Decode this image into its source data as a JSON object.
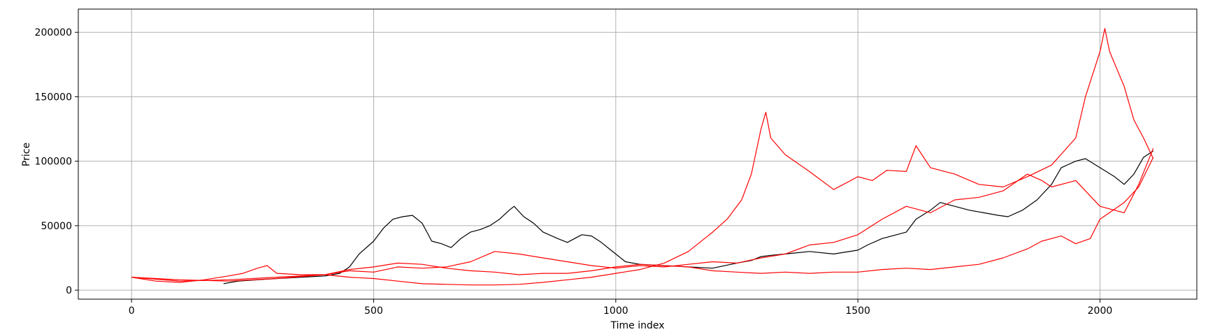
{
  "chart_data": {
    "type": "line",
    "title": "",
    "xlabel": "Time index",
    "ylabel": "Price",
    "xlim": [
      -110,
      2200
    ],
    "ylim": [
      -7000,
      218000
    ],
    "xticks": [
      0,
      500,
      1000,
      1500,
      2000
    ],
    "yticks": [
      0,
      50000,
      100000,
      150000,
      200000
    ],
    "grid": true,
    "series": [
      {
        "color": "#000000",
        "x": [
          190,
          220,
          260,
          300,
          350,
          400,
          430,
          450,
          470,
          500,
          520,
          540,
          560,
          580,
          600,
          620,
          640,
          660,
          680,
          700,
          720,
          740,
          760,
          780,
          790,
          810,
          830,
          850,
          880,
          900,
          930,
          950,
          970,
          990,
          1000,
          1020,
          1050,
          1100,
          1150,
          1200,
          1250,
          1280,
          1300,
          1320,
          1350,
          1400,
          1450,
          1500,
          1520,
          1550,
          1580,
          1600,
          1620,
          1650,
          1670,
          1700,
          1730,
          1760,
          1790,
          1810,
          1840,
          1870,
          1900,
          1920,
          1950,
          1970,
          2000,
          2030,
          2050,
          2070,
          2090,
          2110
        ],
        "y": [
          5000,
          7000,
          8000,
          9000,
          10000,
          11000,
          13000,
          18000,
          28000,
          38000,
          48000,
          55000,
          57000,
          58000,
          52000,
          38000,
          36000,
          33000,
          40000,
          45000,
          47000,
          50000,
          55000,
          62000,
          65000,
          57000,
          52000,
          45000,
          40000,
          37000,
          43000,
          42000,
          37000,
          31000,
          28000,
          22000,
          20000,
          19000,
          18000,
          17000,
          21000,
          23000,
          26000,
          27000,
          28000,
          30000,
          28000,
          31000,
          35000,
          40000,
          43000,
          45000,
          55000,
          62000,
          68000,
          65000,
          62000,
          60000,
          58000,
          57000,
          62000,
          70000,
          82000,
          95000,
          100000,
          102000,
          95000,
          88000,
          82000,
          90000,
          103000,
          108000
        ]
      },
      {
        "color": "#ff0000",
        "x": [
          0,
          50,
          100,
          150,
          200,
          230,
          260,
          280,
          300,
          350,
          400,
          450,
          500,
          550,
          600,
          650,
          700,
          750,
          800,
          850,
          900,
          950,
          1000,
          1050,
          1100,
          1150,
          1200,
          1230,
          1260,
          1280,
          1300,
          1310,
          1320,
          1350,
          1400,
          1450,
          1500,
          1530,
          1560,
          1600,
          1620,
          1650,
          1700,
          1750,
          1800,
          1850,
          1900,
          1950,
          1970,
          2000,
          2010,
          2020,
          2050,
          2070,
          2090,
          2110
        ],
        "y": [
          10000,
          7000,
          6000,
          8000,
          11000,
          13000,
          17000,
          19000,
          13000,
          12000,
          12000,
          10000,
          9000,
          7000,
          5000,
          4500,
          4000,
          4000,
          4500,
          6000,
          8000,
          10000,
          13000,
          16000,
          21000,
          30000,
          45000,
          55000,
          70000,
          90000,
          125000,
          138000,
          118000,
          105000,
          92000,
          78000,
          88000,
          85000,
          93000,
          92000,
          112000,
          95000,
          90000,
          82000,
          80000,
          88000,
          97000,
          118000,
          150000,
          185000,
          203000,
          185000,
          158000,
          132000,
          118000,
          102000
        ]
      },
      {
        "color": "#ff0000",
        "x": [
          0,
          100,
          200,
          300,
          400,
          450,
          500,
          550,
          600,
          650,
          700,
          750,
          800,
          850,
          900,
          950,
          1000,
          1050,
          1100,
          1150,
          1200,
          1250,
          1300,
          1350,
          1400,
          1450,
          1500,
          1550,
          1600,
          1650,
          1700,
          1750,
          1800,
          1850,
          1880,
          1900,
          1950,
          2000,
          2050,
          2080,
          2110
        ],
        "y": [
          10000,
          7000,
          8000,
          10000,
          12000,
          15000,
          14000,
          18000,
          17000,
          18000,
          22000,
          30000,
          28000,
          25000,
          22000,
          19000,
          17000,
          19000,
          18000,
          20000,
          22000,
          21000,
          25000,
          28000,
          35000,
          37000,
          43000,
          55000,
          65000,
          60000,
          70000,
          72000,
          77000,
          90000,
          85000,
          80000,
          85000,
          65000,
          60000,
          82000,
          110000
        ]
      },
      {
        "color": "#ff0000",
        "x": [
          0,
          100,
          200,
          300,
          400,
          450,
          500,
          550,
          600,
          650,
          700,
          750,
          800,
          850,
          900,
          950,
          1000,
          1050,
          1100,
          1150,
          1200,
          1250,
          1300,
          1350,
          1400,
          1450,
          1500,
          1550,
          1600,
          1650,
          1700,
          1750,
          1800,
          1850,
          1880,
          1900,
          1920,
          1950,
          1980,
          2000,
          2050,
          2080,
          2110
        ],
        "y": [
          10000,
          8000,
          7000,
          9000,
          12000,
          16000,
          18000,
          21000,
          20000,
          17000,
          15000,
          14000,
          12000,
          13000,
          13000,
          15000,
          18000,
          20000,
          19000,
          18000,
          15000,
          14000,
          13000,
          14000,
          13000,
          14000,
          14000,
          16000,
          17000,
          16000,
          18000,
          20000,
          25000,
          32000,
          38000,
          40000,
          42000,
          36000,
          40000,
          55000,
          68000,
          80000,
          103000
        ]
      }
    ]
  }
}
